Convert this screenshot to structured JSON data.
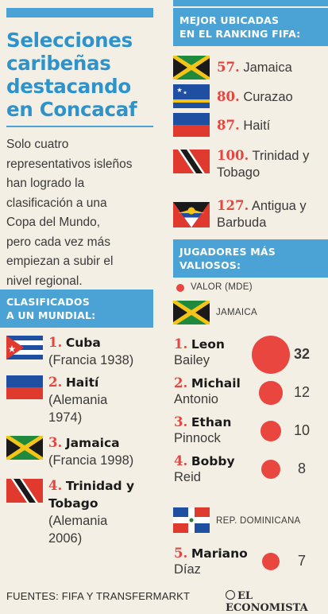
{
  "title_lines": [
    "Selecciones",
    "caribeñas",
    "destacando",
    "en Concacaf"
  ],
  "intro_lines": [
    "Solo cuatro",
    "representativos isleños",
    "han logrado la",
    "clasificación a una",
    "Copa del Mundo,",
    "pero cada vez más",
    "empiezan a subir el",
    "nivel regional."
  ],
  "ranking": {
    "header_lines": [
      "MEJOR UBICADAS",
      "EN EL RANKING FIFA:"
    ],
    "items": [
      {
        "num": "57.",
        "name1": "Jamaica",
        "name2": "",
        "flag": "jamaica-flag"
      },
      {
        "num": "80.",
        "name1": "Curazao",
        "name2": "",
        "flag": "curacao-flag"
      },
      {
        "num": "87.",
        "name1": "Haití",
        "name2": "",
        "flag": "haiti-flag"
      },
      {
        "num": "100.",
        "name1": "Trinidad y",
        "name2": "Tobago",
        "flag": "trinidad-flag"
      },
      {
        "num": "127.",
        "name1": "Antigua y",
        "name2": "Barbuda",
        "flag": "antigua-flag"
      }
    ]
  },
  "qualified": {
    "header_lines": [
      "CLASIFICADOS",
      "A UN MUNDIAL:"
    ],
    "items": [
      {
        "num": "1.",
        "lines": [
          "Cuba"
        ],
        "detail": [
          "(Francia 1938)"
        ],
        "flag": "cuba-flag"
      },
      {
        "num": "2.",
        "lines": [
          "Haití"
        ],
        "detail": [
          "(Alemania",
          "1974)"
        ],
        "flag": "haiti-flag"
      },
      {
        "num": "3.",
        "lines": [
          "Jamaica"
        ],
        "detail": [
          "(Francia 1998)"
        ],
        "flag": "jamaica-flag"
      },
      {
        "num": "4.",
        "lines": [
          "Trinidad y",
          "Tobago"
        ],
        "detail": [
          "(Alemania",
          "2006)"
        ],
        "flag": "trinidad-flag"
      }
    ]
  },
  "players": {
    "header_lines": [
      "JUGADORES MÁS",
      "VALIOSOS:"
    ],
    "legend": "VALOR (MDE)",
    "group1": "JAMAICA",
    "group2": "REP. DOMINICANA",
    "items": [
      {
        "num": "1.",
        "first": "Leon",
        "last": "Bailey",
        "value": 32
      },
      {
        "num": "2.",
        "first": "Michail",
        "last": "Antonio",
        "value": 12
      },
      {
        "num": "3.",
        "first": "Ethan",
        "last": "Pinnock",
        "value": 10
      },
      {
        "num": "4.",
        "first": "Bobby",
        "last": "Reid",
        "value": 8
      },
      {
        "num": "5.",
        "first": "Mariano",
        "last": "Díaz",
        "value": 7
      }
    ]
  },
  "footer": "FUENTES: FIFA Y TRANSFERMARKT",
  "logo": "EL ECONOMISTA",
  "colors": {
    "accent_blue": "#4aa3d4",
    "accent_red": "#e8463f",
    "background": "#f4efe4"
  }
}
